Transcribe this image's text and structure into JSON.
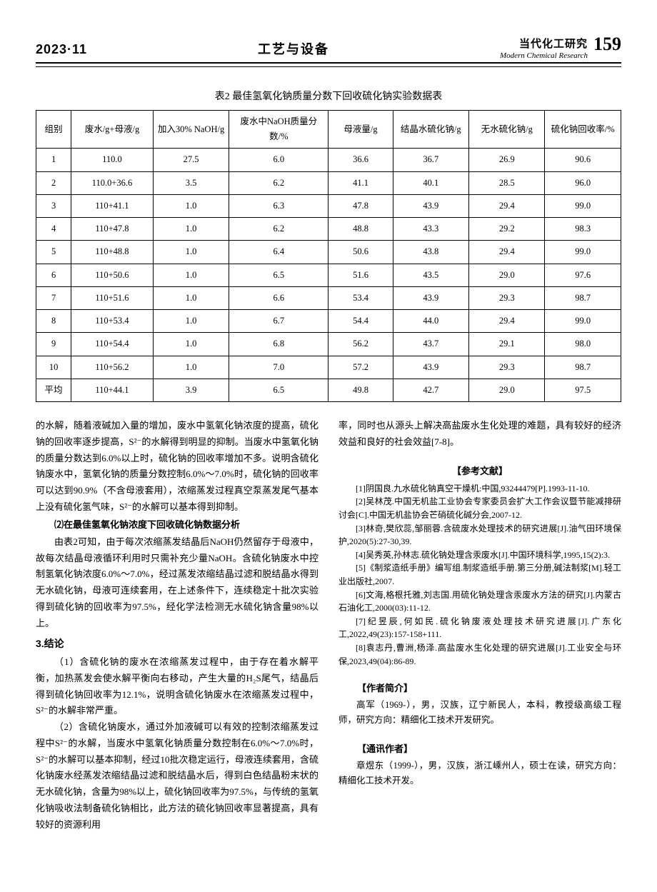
{
  "header": {
    "issue": "2023·11",
    "section": "工艺与设备",
    "journal_cn": "当代化工研究",
    "journal_en": "Modern Chemical Research",
    "page": "159"
  },
  "table": {
    "caption": "表2 最佳氢氧化钠质量分数下回收硫化钠实验数据表",
    "columns": [
      "组别",
      "废水/g+母液/g",
      "加入30% NaOH/g",
      "废水中NaOH质量分数/%",
      "母液量/g",
      "结晶水硫化钠/g",
      "无水硫化钠/g",
      "硫化钠回收率/%"
    ],
    "rows": [
      [
        "1",
        "110.0",
        "27.5",
        "6.0",
        "36.6",
        "36.7",
        "26.9",
        "90.6"
      ],
      [
        "2",
        "110.0+36.6",
        "3.5",
        "6.2",
        "41.1",
        "40.1",
        "28.5",
        "96.0"
      ],
      [
        "3",
        "110+41.1",
        "1.0",
        "6.3",
        "47.8",
        "43.9",
        "29.4",
        "99.0"
      ],
      [
        "4",
        "110+47.8",
        "1.0",
        "6.2",
        "48.8",
        "43.3",
        "29.2",
        "98.3"
      ],
      [
        "5",
        "110+48.8",
        "1.0",
        "6.4",
        "50.6",
        "43.8",
        "29.4",
        "99.0"
      ],
      [
        "6",
        "110+50.6",
        "1.0",
        "6.5",
        "51.6",
        "43.5",
        "29.0",
        "97.6"
      ],
      [
        "7",
        "110+51.6",
        "1.0",
        "6.6",
        "53.4",
        "43.9",
        "29.3",
        "98.7"
      ],
      [
        "8",
        "110+53.4",
        "1.0",
        "6.7",
        "54.4",
        "44.0",
        "29.4",
        "99.0"
      ],
      [
        "9",
        "110+54.4",
        "1.0",
        "6.8",
        "56.2",
        "43.7",
        "29.1",
        "98.0"
      ],
      [
        "10",
        "110+56.2",
        "1.0",
        "7.0",
        "57.2",
        "43.9",
        "29.3",
        "98.7"
      ],
      [
        "平均",
        "110+44.1",
        "3.9",
        "6.5",
        "49.8",
        "42.7",
        "29.0",
        "97.5"
      ]
    ],
    "col_widths": [
      "6%",
      "14%",
      "13%",
      "17%",
      "11%",
      "13%",
      "13%",
      "13%"
    ]
  },
  "left_col": {
    "p1": "的水解，随着液碱加入量的增加，废水中氢氧化钠浓度的提高，硫化钠的回收率逐步提高，S²⁻的水解得到明显的抑制。当废水中氢氧化钠的质量分数达到6.0%以上时，硫化钠的回收率增加不多。说明含硫化钠废水中，氢氧化钠的质量分数控制6.0%～7.0%时，硫化钠的回收率可以达到90.9%（不含母液套用），浓缩蒸发过程真空泵蒸发尾气基本上没有硫化氢气味，S²⁻的水解可以基本得到抑制。",
    "h2": "⑵在最佳氢氧化钠浓度下回收硫化钠数据分析",
    "p2": "由表2可知，由于每次浓缩蒸发结晶后NaOH仍然留存于母液中，故每次结晶母液循环利用时只需补充少量NaOH。含硫化钠废水中控制氢氧化钠浓度6.0%～7.0%，经过蒸发浓缩结晶过滤和脱结晶水得到无水硫化钠，母液可连续套用，在上述条件下，连续稳定十批次实验得到硫化钠的回收率为97.5%，经化学法检测无水硫化钠含量98%以上。",
    "sec3": "3.结论",
    "p3": "（1）含硫化钠的废水在浓缩蒸发过程中，由于存在着水解平衡，加热蒸发会使水解平衡向右移动，产生大量的H₂S尾气，结晶后得到硫化钠回收率为12.1%，说明含硫化钠废水在浓缩蒸发过程中，S²⁻的水解非常严重。",
    "p4": "（2）含硫化钠废水，通过外加液碱可以有效的控制浓缩蒸发过程中S²⁻的水解，当废水中氢氧化钠质量分数控制在6.0%～7.0%时，S²⁻的水解可以基本抑制，经过10批次稳定运行，母液连续套用，含硫化钠废水经蒸发浓缩结晶过滤和脱结晶水后，得到白色结晶粉末状的无水硫化钠，含量为98%以上，硫化钠回收率为97.5%，与传统的氢氧化钠吸收法制备硫化钠相比，此方法的硫化钠回收率显著提高，具有较好的资源利用"
  },
  "right_col": {
    "p1": "率，同时也从源头上解决高盐废水生化处理的难题，具有较好的经济效益和良好的社会效益[7-8]。",
    "ref_head": "【参考文献】",
    "refs": [
      "[1]阴国良.九水硫化钠真空干燥机:中国,93244479[P].1993-11-10.",
      "[2]吴林茂.中国无机盐工业协会专家委员会扩大工作会议暨节能减排研讨会[C].中国无机盐协会芒硝硫化碱分会,2007-12.",
      "[3]林奇,樊欣蕊,邹丽蓉.含硫废水处理技术的研究进展[J].油气田环境保护,2020(5):27-30,39.",
      "[4]吴秀英,孙林志.硫化钠处理含汞废水[J].中国环境科学,1995,15(2):3.",
      "[5]《制浆造纸手册》编写组.制浆造纸手册.第三分册,碱法制浆[M].轻工业出版社,2007.",
      "[6]文海,格根托雅,刘志国.用硫化钠处理含汞废水方法的研究[J].内蒙古石油化工,2000(03):11-12.",
      "[7]纪昱辰,何如民.硫化钠废液处理技术研究进展[J].广东化工,2022,49(23):157-158+111.",
      "[8]袁志丹,曹洲,杨泽.高盐废水生化处理的研究进展[J].工业安全与环保,2023,49(04):86-89."
    ],
    "author_head": "【作者简介】",
    "author_body": "高军（1969-），男，汉族，辽宁新民人，本科，教授级高级工程师，研究方向：精细化工技术开发研究。",
    "corr_head": "【通讯作者】",
    "corr_body": "章煜东（1999-），男，汉族，浙江嵊州人，硕士在读，研究方向：精细化工技术开发。"
  },
  "style": {
    "font_body_pt": 13,
    "font_ref_pt": 12,
    "background_color": "#ffffff",
    "text_color": "#000000",
    "border_color": "#000000"
  }
}
